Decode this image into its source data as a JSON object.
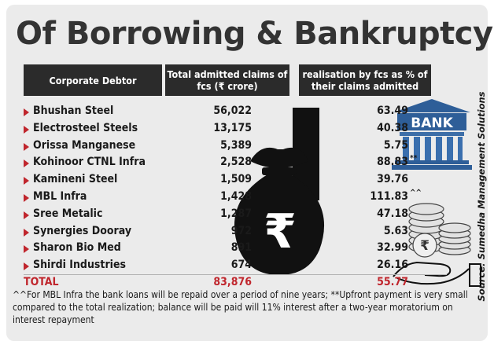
{
  "title": "Of Borrowing & Bankruptcy",
  "headers": {
    "debtor": "Corporate Debtor",
    "claims": "Total admitted claims of fcs (₹ crore)",
    "realisation": "realisation by fcs as % of their claims admitted"
  },
  "rows": [
    {
      "name": "Bhushan Steel",
      "claims": "56,022",
      "realisation": "63.49",
      "mark": ""
    },
    {
      "name": "Electrosteel Steels",
      "claims": "13,175",
      "realisation": "40.38",
      "mark": ""
    },
    {
      "name": "Orissa Manganese",
      "claims": "5,389",
      "realisation": "5.75",
      "mark": ""
    },
    {
      "name": "Kohinoor CTNL Infra",
      "claims": "2,528",
      "realisation": "88.83",
      "mark": "**"
    },
    {
      "name": "Kamineni Steel",
      "claims": "1,509",
      "realisation": "39.76",
      "mark": ""
    },
    {
      "name": "MBL Infra",
      "claims": "1,428",
      "realisation": "111.83",
      "mark": "^^"
    },
    {
      "name": "Sree Metalic",
      "claims": "1,287",
      "realisation": "47.18",
      "mark": ""
    },
    {
      "name": "Synergies Dooray",
      "claims": "972",
      "realisation": "5.63",
      "mark": ""
    },
    {
      "name": "Sharon Bio Med",
      "claims": "891",
      "realisation": "32.99",
      "mark": ""
    },
    {
      "name": "Shirdi Industries",
      "claims": "674",
      "realisation": "26.16",
      "mark": ""
    }
  ],
  "total": {
    "label": "TOTAL",
    "claims": "83,876",
    "realisation": "55.77"
  },
  "footnote": "^^For MBL Infra the bank loans will be repaid over a period of nine years; **Upfront payment is very small compared to the total realization; balance will be paid will 11% interest after a two-year moratorium on interest repayment",
  "source": "Source: Sumedha Management Solutions",
  "bank_label": "BANK",
  "currency_symbol": "₹",
  "colors": {
    "accent": "#c0262d",
    "header_bg": "#2b2b2b",
    "panel_bg": "#ebebeb",
    "bank_blue": "#2e5e98",
    "coin": "#d8d8d8"
  },
  "icons": [
    "money-bag-icon",
    "bank-building-icon",
    "coin-stack-icon",
    "hand-icon"
  ]
}
